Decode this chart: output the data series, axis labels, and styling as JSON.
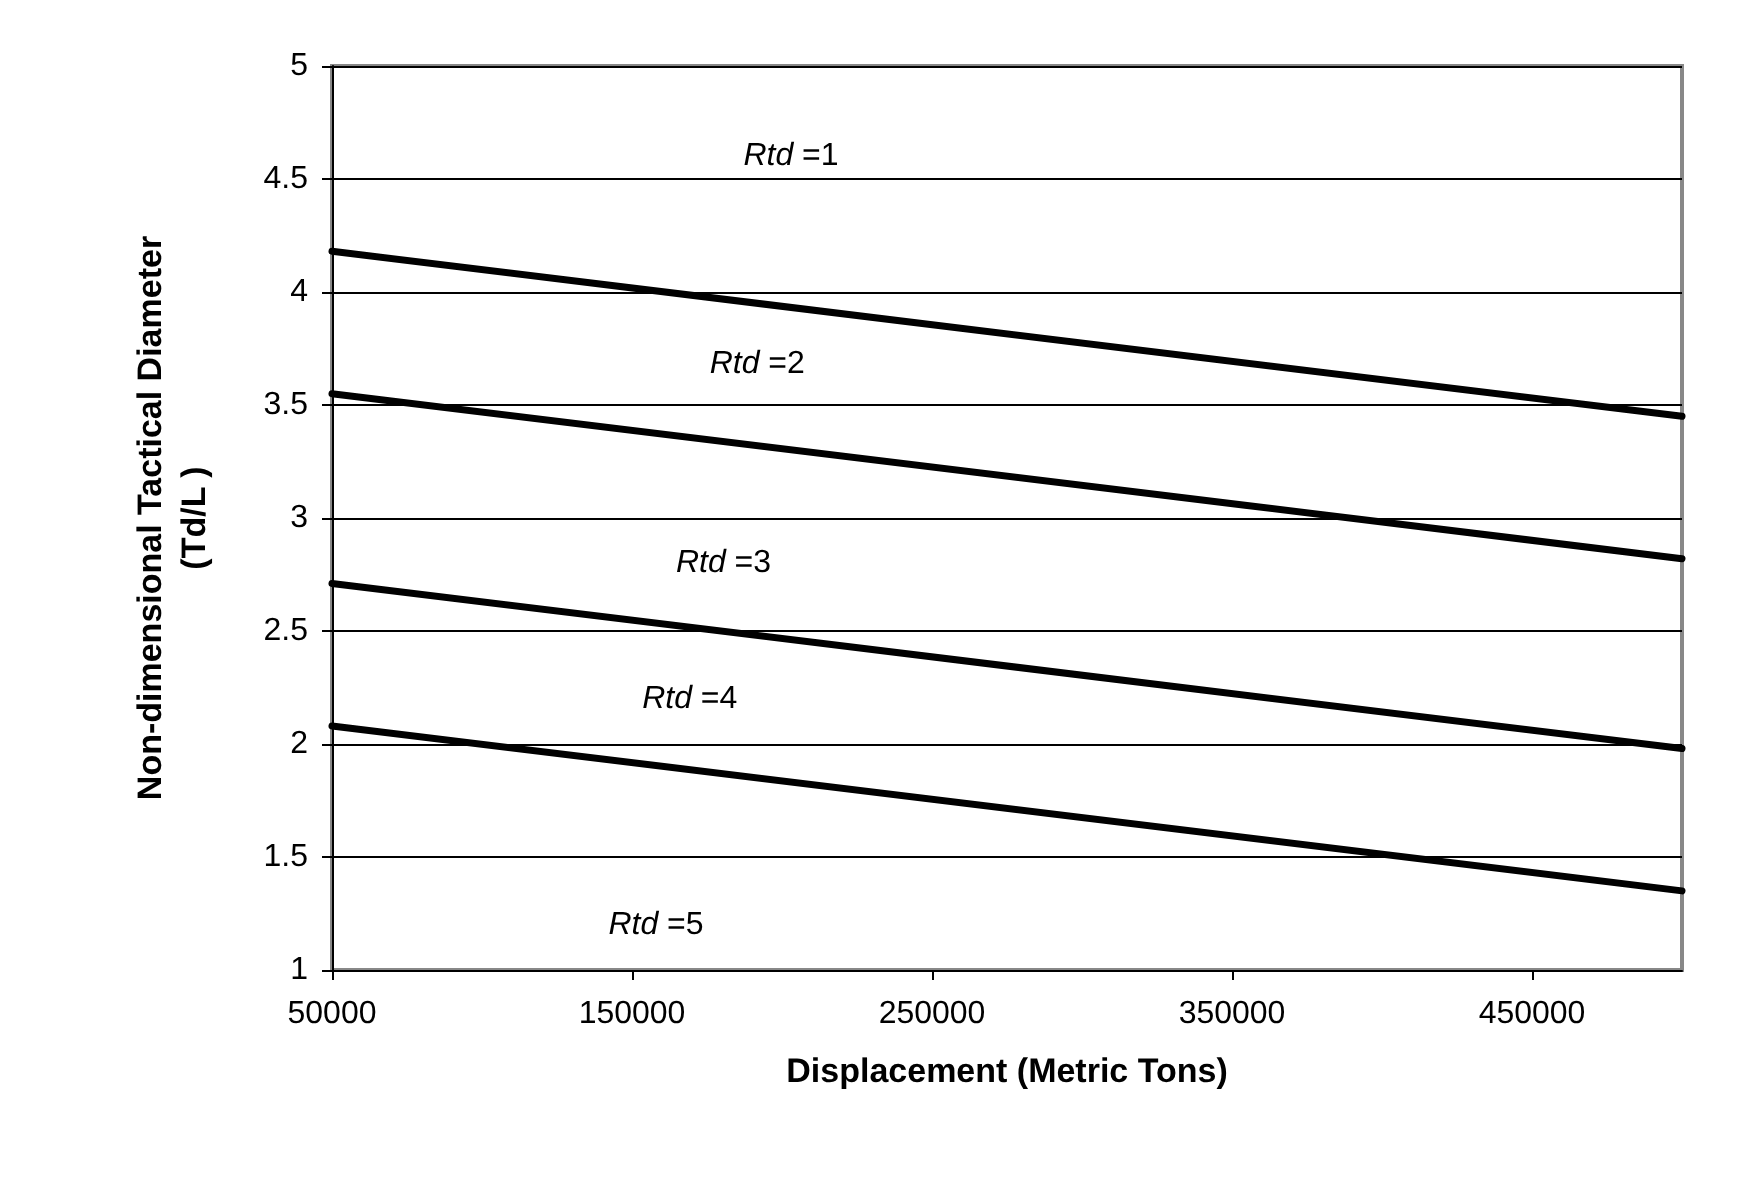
{
  "chart_data": {
    "type": "line",
    "xlabel": "Displacement (Metric Tons)",
    "ylabel": "Non-dimensional Tactical Diameter\n(Td/L )",
    "xlim": [
      50000,
      500000
    ],
    "xticks": [
      50000,
      150000,
      250000,
      350000,
      450000
    ],
    "x": [
      50000,
      500000
    ],
    "ylim": [
      1,
      5
    ],
    "yticks": [
      1,
      1.5,
      2,
      2.5,
      3,
      3.5,
      4,
      4.5,
      5
    ],
    "grid": "y",
    "marker": "none",
    "line_style": "solid",
    "series": [
      {
        "color": "#000000",
        "values": [
          4.18,
          3.45
        ]
      },
      {
        "color": "#000000",
        "values": [
          3.55,
          2.82
        ]
      },
      {
        "color": "#000000",
        "values": [
          2.71,
          1.98
        ]
      },
      {
        "color": "#000000",
        "values": [
          2.08,
          1.35
        ]
      }
    ],
    "annotations": [
      "Rtd =1",
      "Rtd =2",
      "Rtd =3",
      "Rtd =4",
      "Rtd =5"
    ]
  }
}
